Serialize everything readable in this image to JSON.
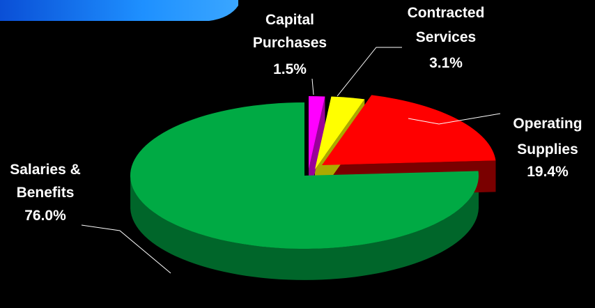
{
  "colors": {
    "background": "#000000",
    "banner": "#1e90ff"
  },
  "chart_data": {
    "type": "pie",
    "style": "3d-exploded",
    "legend": "none",
    "slices": [
      {
        "id": "salaries",
        "label_lines": [
          "Salaries &",
          "Benefits"
        ],
        "value": 76.0,
        "value_label": "76.0%",
        "color": "#00aa44",
        "side_color": "#00662a"
      },
      {
        "id": "capital",
        "label_lines": [
          "Capital",
          "Purchases"
        ],
        "value": 1.5,
        "value_label": "1.5%",
        "color": "#ff00ff",
        "side_color": "#990099"
      },
      {
        "id": "contracted",
        "label_lines": [
          "Contracted",
          "Services"
        ],
        "value": 3.1,
        "value_label": "3.1%",
        "color": "#ffff00",
        "side_color": "#aaaa00"
      },
      {
        "id": "operating",
        "label_lines": [
          "Operating",
          "Supplies"
        ],
        "value": 19.4,
        "value_label": "19.4%",
        "color": "#ff0000",
        "side_color": "#7a0000"
      }
    ]
  }
}
